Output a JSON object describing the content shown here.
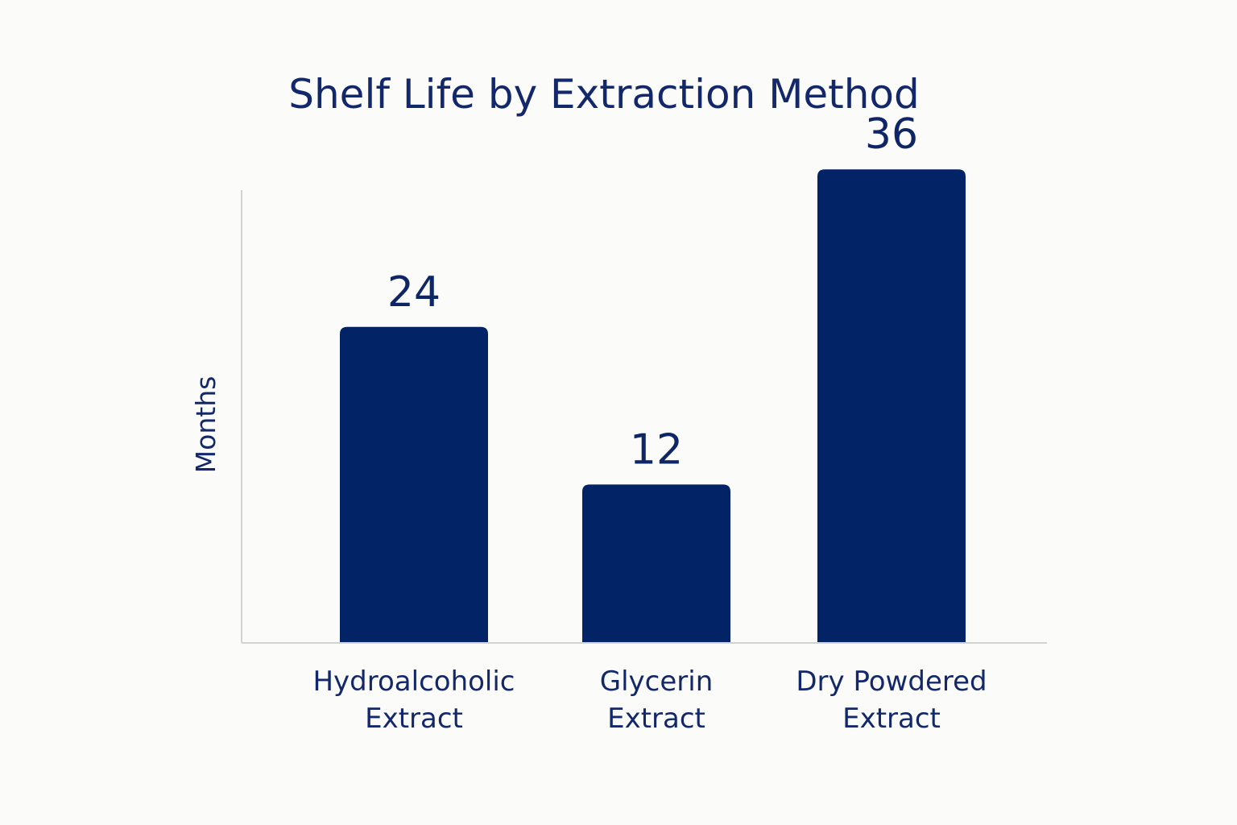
{
  "chart_data": {
    "type": "bar",
    "title": "Shelf Life by Extraction Method",
    "xlabel": "",
    "ylabel": "Months",
    "categories": [
      [
        "Hydroalcoholic",
        "Extract"
      ],
      [
        "Glycerin",
        "Extract"
      ],
      [
        "Dry Powdered",
        "Extract"
      ]
    ],
    "values": [
      24,
      12,
      36
    ],
    "data_labels": [
      "24",
      "12",
      "36"
    ],
    "ylim": [
      0,
      42
    ],
    "grid": false,
    "bar_color": "#022366",
    "axis_color": "#d2d2d2"
  }
}
